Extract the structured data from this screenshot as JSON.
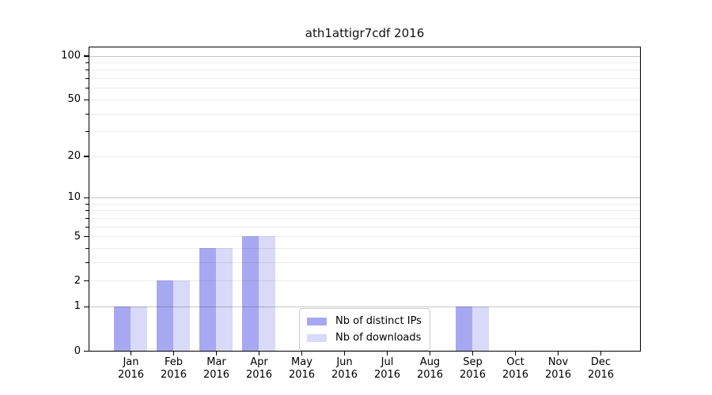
{
  "chart_data": {
    "type": "bar",
    "title": "ath1attigr7cdf 2016",
    "x_categories": [
      {
        "month": "Jan",
        "year": "2016"
      },
      {
        "month": "Feb",
        "year": "2016"
      },
      {
        "month": "Mar",
        "year": "2016"
      },
      {
        "month": "Apr",
        "year": "2016"
      },
      {
        "month": "May",
        "year": "2016"
      },
      {
        "month": "Jun",
        "year": "2016"
      },
      {
        "month": "Jul",
        "year": "2016"
      },
      {
        "month": "Aug",
        "year": "2016"
      },
      {
        "month": "Sep",
        "year": "2016"
      },
      {
        "month": "Oct",
        "year": "2016"
      },
      {
        "month": "Nov",
        "year": "2016"
      },
      {
        "month": "Dec",
        "year": "2016"
      }
    ],
    "series": [
      {
        "name": "Nb of distinct IPs",
        "color": "#a8a8f2",
        "values": [
          1,
          2,
          4,
          5,
          0,
          0,
          0,
          0,
          1,
          0,
          0,
          0
        ]
      },
      {
        "name": "Nb of downloads",
        "color": "#d9d9f8",
        "values": [
          1,
          2,
          4,
          5,
          0,
          0,
          0,
          0,
          1,
          0,
          0,
          0
        ]
      }
    ],
    "y_axis": {
      "scale": "log1p",
      "tick_values": [
        0,
        1,
        2,
        5,
        10,
        20,
        50,
        100
      ],
      "tick_labels": [
        "0",
        "1",
        "2",
        "5",
        "10",
        "20",
        "50",
        "100"
      ],
      "decade_gridlines": [
        1,
        10,
        100
      ],
      "minor_gridlines": [
        2,
        3,
        4,
        5,
        6,
        7,
        8,
        9,
        20,
        30,
        40,
        50,
        60,
        70,
        80,
        90
      ],
      "ylim": [
        0,
        115
      ]
    },
    "legend": {
      "position": "lower-center"
    },
    "grid": true
  }
}
